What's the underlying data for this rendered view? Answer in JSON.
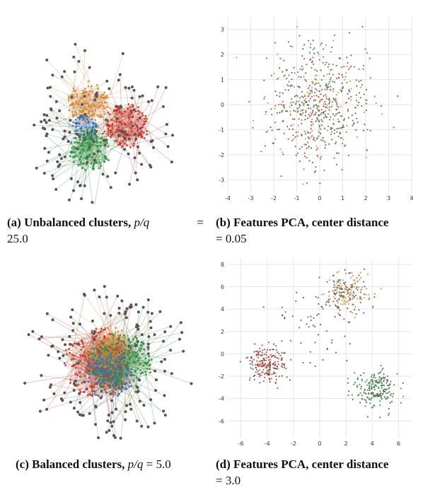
{
  "colors": {
    "red": "#c0392b",
    "green": "#2e8b3d",
    "orange": "#d2883a",
    "blue": "#3b6fb5",
    "node": "#555555",
    "grid": "#e6e6e6"
  },
  "captions": {
    "a": {
      "label": "(a)",
      "text": "Unbalanced clusters,",
      "pq": "p/q",
      "eq": "=",
      "value": "25.0"
    },
    "b": {
      "label": "(b)",
      "text": "Features PCA, center distance",
      "value": "= 0.05"
    },
    "c": {
      "label": "(c)",
      "text": "Balanced clusters,",
      "pq": "p/q",
      "eq": "=",
      "value": "5.0"
    },
    "d": {
      "label": "(d)",
      "text": "Features PCA, center distance",
      "value": "= 3.0"
    }
  },
  "chart_data": [
    {
      "type": "scatter",
      "title": "",
      "xlim": [
        -4,
        4
      ],
      "ylim": [
        -3.5,
        3.5
      ],
      "xticks": [
        "-4",
        "-3",
        "-2",
        "-1",
        "0",
        "1",
        "2",
        "3",
        "4"
      ],
      "yticks": [
        "3",
        "2",
        "1",
        "0",
        "-1",
        "-2",
        "-3"
      ],
      "grid": true,
      "series": [
        {
          "color": "#c0392b",
          "center": [
            0,
            0
          ],
          "spread": 1.1,
          "count": 200
        },
        {
          "color": "#2e8b3d",
          "center": [
            0.05,
            0
          ],
          "spread": 1.1,
          "count": 200
        },
        {
          "color": "#d2883a",
          "center": [
            0,
            0.05
          ],
          "spread": 1.1,
          "count": 200
        }
      ]
    },
    {
      "type": "scatter",
      "title": "",
      "xlim": [
        -7,
        7
      ],
      "ylim": [
        -7.5,
        8.5
      ],
      "xticks": [
        "-6",
        "-4",
        "-2",
        "0",
        "2",
        "4",
        "6"
      ],
      "yticks": [
        "8",
        "6",
        "4",
        "2",
        "0",
        "-2",
        "-4",
        "-6"
      ],
      "grid": true,
      "series": [
        {
          "color": "#c0392b",
          "center": [
            -4,
            -1
          ],
          "spread": 0.8,
          "count": 200
        },
        {
          "color": "#2e8b3d",
          "center": [
            4.3,
            -3
          ],
          "spread": 0.8,
          "count": 200
        },
        {
          "color": "#d2883a",
          "center": [
            2,
            5.5
          ],
          "spread": 0.8,
          "count": 200
        },
        {
          "color": "#555555",
          "center": [
            0,
            2.5
          ],
          "spread": 1.6,
          "count": 60
        }
      ]
    }
  ]
}
